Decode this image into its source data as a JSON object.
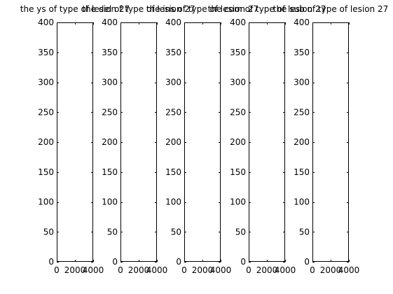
{
  "figure": {
    "background": "#ffffff",
    "axes_color": "#000000",
    "bar_color": "#000033"
  },
  "chart_data": [
    {
      "type": "bar",
      "title": "the ys of type of lesion 27",
      "xlim": [
        0,
        4000
      ],
      "ylim": [
        0,
        400
      ],
      "xticks": [
        0,
        2000,
        4000
      ],
      "xtick_labels": [
        "0",
        "2000",
        "4000"
      ],
      "yticks": [
        0,
        50,
        100,
        150,
        200,
        250,
        300,
        350,
        400
      ],
      "ytick_labels": [
        "0",
        "50",
        "100",
        "150",
        "200",
        "250",
        "300",
        "350",
        "400"
      ],
      "bars": [
        {
          "x0": 0,
          "x1": 60,
          "value": 367
        }
      ],
      "grid": false
    },
    {
      "type": "bar",
      "title": "the del of type of lesion 27",
      "xlim": [
        0,
        4000
      ],
      "ylim": [
        0,
        400
      ],
      "xticks": [
        0,
        2000,
        4000
      ],
      "xtick_labels": [
        "0",
        "2000",
        "4000"
      ],
      "yticks": [
        0,
        50,
        100,
        150,
        200,
        250,
        300,
        350,
        400
      ],
      "ytick_labels": [
        "0",
        "50",
        "100",
        "150",
        "200",
        "250",
        "300",
        "350",
        "400"
      ],
      "bars": [
        {
          "x0": 0,
          "x1": 60,
          "value": 367
        }
      ],
      "grid": false
    },
    {
      "type": "bar",
      "title": "the ins of type of lesion 27",
      "xlim": [
        0,
        4000
      ],
      "ylim": [
        0,
        400
      ],
      "xticks": [
        0,
        2000,
        4000
      ],
      "xtick_labels": [
        "0",
        "2000",
        "4000"
      ],
      "yticks": [
        0,
        50,
        100,
        150,
        200,
        250,
        300,
        350,
        400
      ],
      "ytick_labels": [
        "0",
        "50",
        "100",
        "150",
        "200",
        "250",
        "300",
        "350",
        "400"
      ],
      "bars": [
        {
          "x0": 0,
          "x1": 60,
          "value": 367
        }
      ],
      "grid": false
    },
    {
      "type": "bar",
      "title": "the com of type of lesion 27",
      "xlim": [
        0,
        4000
      ],
      "ylim": [
        0,
        400
      ],
      "xticks": [
        0,
        2000,
        4000
      ],
      "xtick_labels": [
        "0",
        "2000",
        "4000"
      ],
      "yticks": [
        0,
        50,
        100,
        150,
        200,
        250,
        300,
        350,
        400
      ],
      "ytick_labels": [
        "0",
        "50",
        "100",
        "150",
        "200",
        "250",
        "300",
        "350",
        "400"
      ],
      "bars": [
        {
          "x0": 0,
          "x1": 60,
          "value": 367
        }
      ],
      "grid": false
    },
    {
      "type": "bar",
      "title": "the sub of type of lesion 27",
      "xlim": [
        0,
        4000
      ],
      "ylim": [
        0,
        400
      ],
      "xticks": [
        0,
        2000,
        4000
      ],
      "xtick_labels": [
        "0",
        "2000",
        "4000"
      ],
      "yticks": [
        0,
        50,
        100,
        150,
        200,
        250,
        300,
        350,
        400
      ],
      "ytick_labels": [
        "0",
        "50",
        "100",
        "150",
        "200",
        "250",
        "300",
        "350",
        "400"
      ],
      "bars": [
        {
          "x0": 0,
          "x1": 60,
          "value": 367
        }
      ],
      "grid": false
    }
  ]
}
